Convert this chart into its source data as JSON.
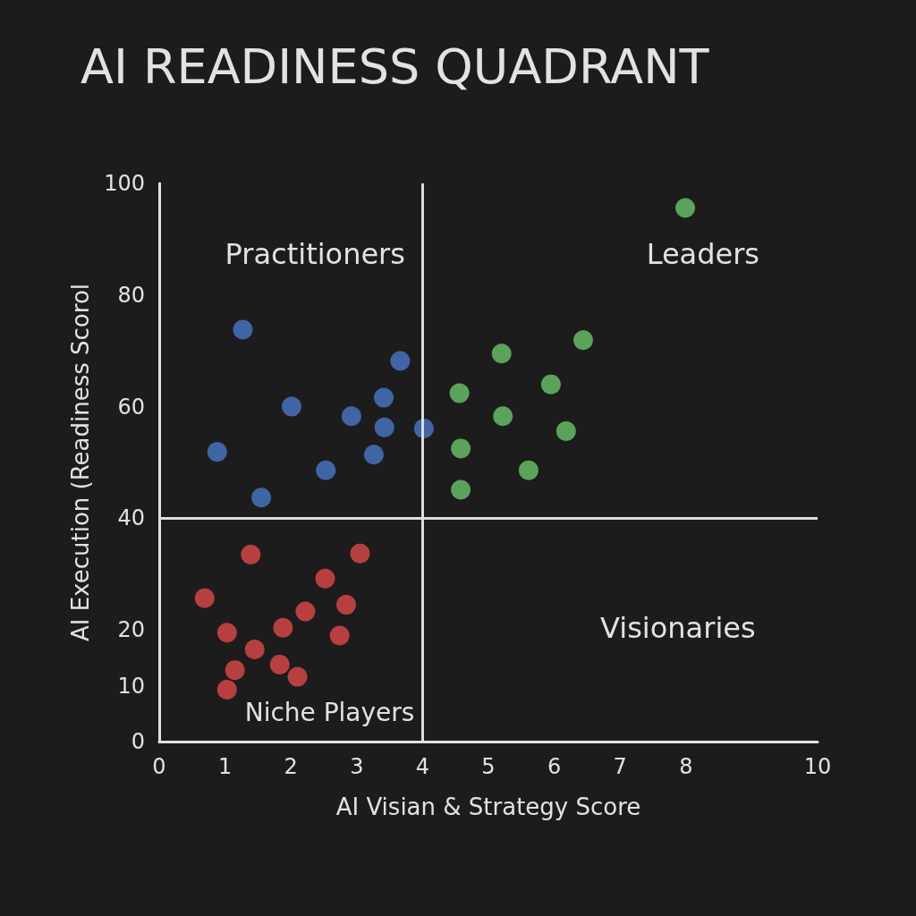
{
  "chart_data": {
    "type": "scatter",
    "title": "AI READINESS QUADRANT",
    "xlabel": "AI Visian & Strategy Score",
    "ylabel": "AI Execution (Readiness Scorol",
    "xlim": [
      0,
      10
    ],
    "xticks": [
      0,
      1,
      2,
      3,
      4,
      5,
      6,
      7,
      8,
      10
    ],
    "ylim": [
      0,
      100
    ],
    "yticks": [
      0,
      10,
      20,
      40,
      60,
      80,
      100
    ],
    "grid": false,
    "marker": "circle",
    "ref_lines": [
      {
        "axis": "x",
        "value": 4,
        "color": "#dcdcdc"
      },
      {
        "axis": "y",
        "value": 40,
        "color": "#dcdcdc"
      }
    ],
    "annotations": [
      "Practitioners",
      "Leaders",
      "Visionaries",
      "Niche Players"
    ],
    "series": [
      {
        "color": "#4a78c8",
        "x": [
          0.88,
          1.27,
          1.55,
          2.01,
          2.53,
          2.92,
          3.26,
          3.41,
          3.42,
          3.66,
          4.02
        ],
        "values": [
          51.9,
          73.8,
          43.7,
          60,
          48.6,
          58.3,
          51.4,
          61.6,
          56.3,
          68.2,
          56.1
        ]
      },
      {
        "color": "#6cc46c",
        "x": [
          4.56,
          4.58,
          4.58,
          5.2,
          5.22,
          5.61,
          5.95,
          6.18,
          6.44,
          7.99
        ],
        "values": [
          62.4,
          52.5,
          45.1,
          69.5,
          58.3,
          48.6,
          64,
          55.6,
          71.9,
          95.6
        ]
      },
      {
        "color": "#e04848",
        "x": [
          0.69,
          1.03,
          1.39,
          1.45,
          1.15,
          1.03,
          1.83,
          1.88,
          2.1,
          2.22,
          2.52,
          2.84,
          2.74,
          3.05
        ],
        "values": [
          25.7,
          19.5,
          33.5,
          16.5,
          12.8,
          9.3,
          13.8,
          20.4,
          11.6,
          23.3,
          29.2,
          24.5,
          19,
          33.7
        ]
      }
    ]
  }
}
